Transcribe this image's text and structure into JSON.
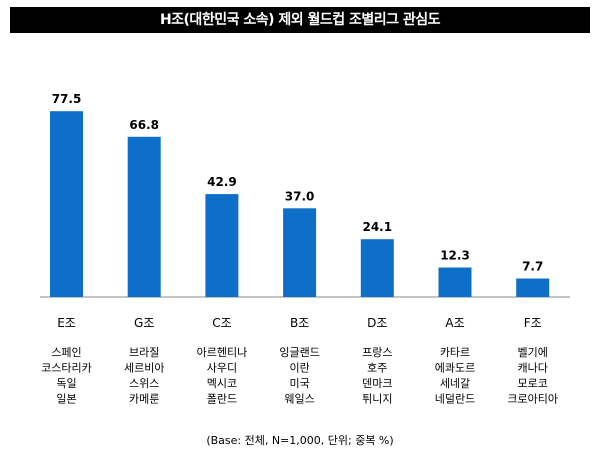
{
  "chart_data": {
    "type": "bar",
    "title": "H조(대한민국 소속) 제외 월드컵 조별리그 관심도",
    "categories": [
      "E조",
      "G조",
      "C조",
      "B조",
      "D조",
      "A조",
      "F조"
    ],
    "values": [
      77.5,
      66.8,
      42.9,
      37.0,
      24.1,
      12.3,
      7.7
    ],
    "value_labels": [
      "77.5",
      "66.8",
      "42.9",
      "37.0",
      "24.1",
      "12.3",
      "7.7"
    ],
    "teams": [
      [
        "스페인",
        "코스타리카",
        "독일",
        "일본"
      ],
      [
        "브라질",
        "세르비아",
        "스위스",
        "카메룬"
      ],
      [
        "아르헨티나",
        "사우디",
        "멕시코",
        "폴란드"
      ],
      [
        "잉글랜드",
        "이란",
        "미국",
        "웨일스"
      ],
      [
        "프랑스",
        "호주",
        "덴마크",
        "튀니지"
      ],
      [
        "카타르",
        "에콰도르",
        "세네갈",
        "네덜란드"
      ],
      [
        "벨기에",
        "캐나다",
        "모로코",
        "크로아티아"
      ]
    ],
    "ylim": [
      0,
      85
    ],
    "grid": false,
    "bar_color": "#0d6fc7",
    "footnote": "(Base: 전체, N=1,000, 단위; 중복 %)"
  }
}
